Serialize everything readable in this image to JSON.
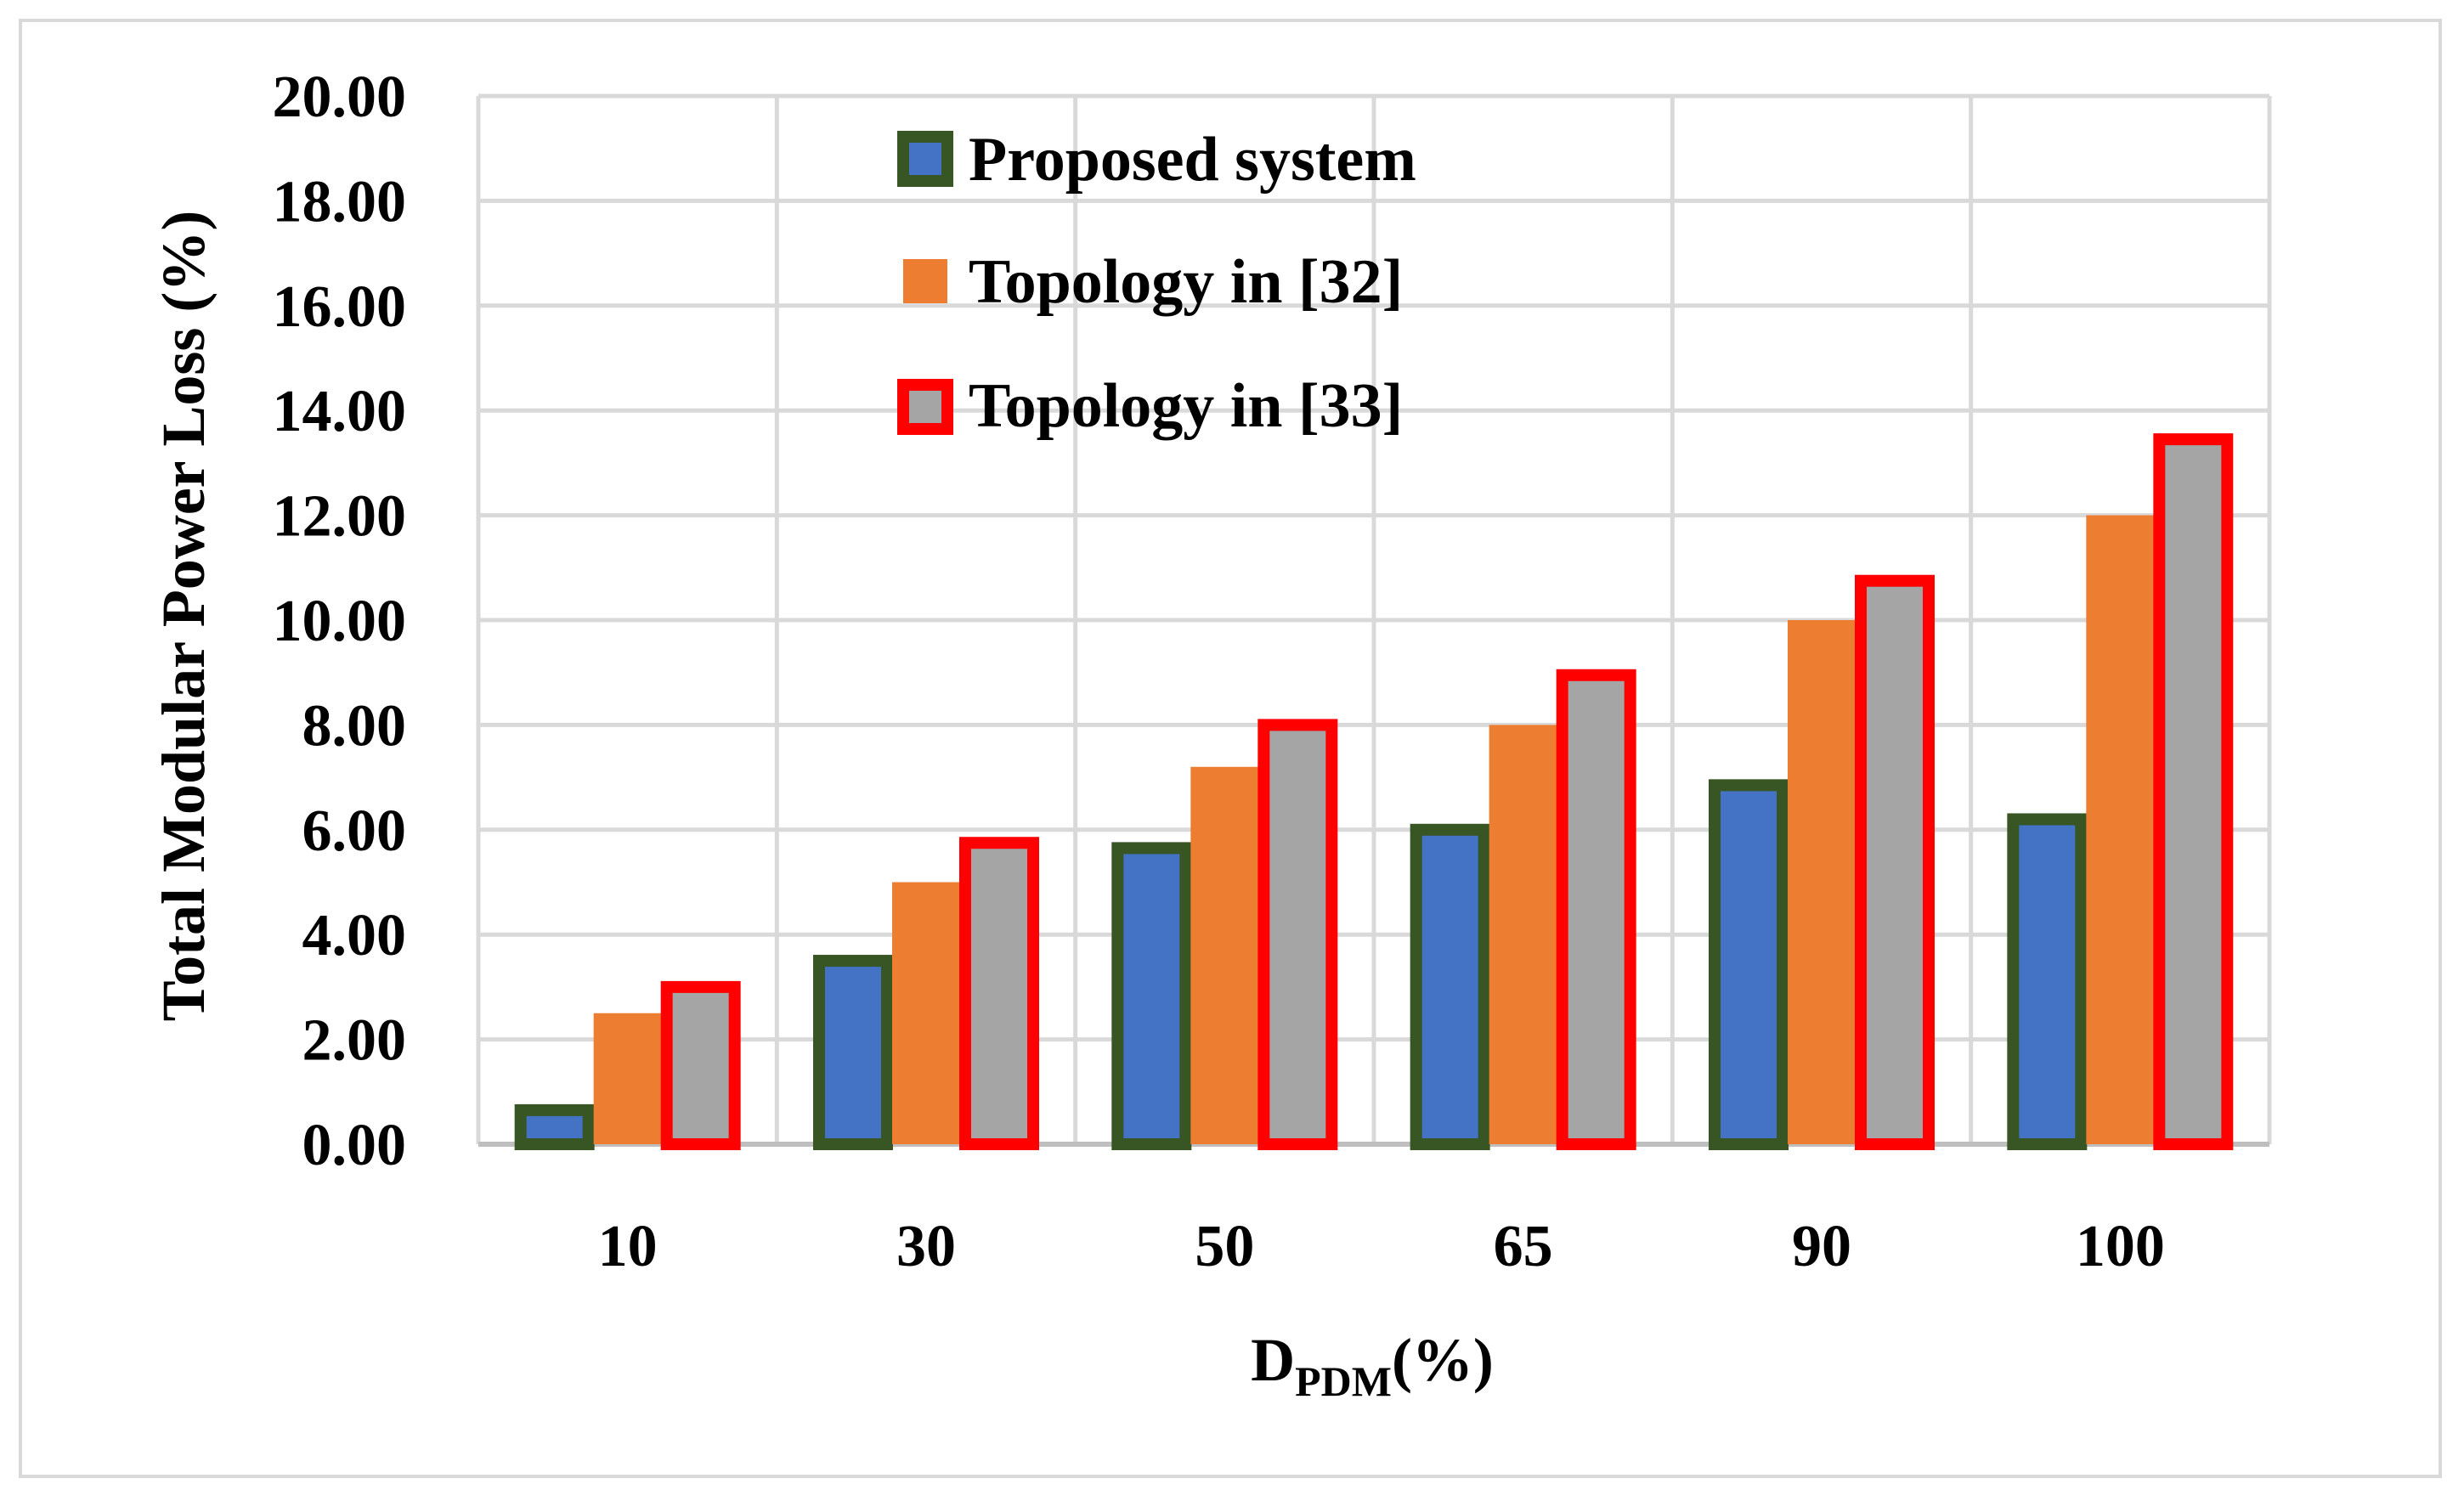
{
  "chart_data": {
    "type": "bar",
    "title": "",
    "xlabel": "D",
    "xlabel_sub": "PDM",
    "xlabel_suffix": "(%)",
    "ylabel": "Total Modular Power Loss (%)",
    "ylim": [
      0,
      20
    ],
    "ytick_step": 2,
    "ytick_labels": [
      "0.00",
      "2.00",
      "4.00",
      "6.00",
      "8.00",
      "10.00",
      "12.00",
      "14.00",
      "16.00",
      "18.00",
      "20.00"
    ],
    "grid": true,
    "legend_position": "top-center",
    "categories": [
      "10",
      "30",
      "50",
      "65",
      "90",
      "100"
    ],
    "series": [
      {
        "name": "Proposed system",
        "values": [
          0.65,
          3.5,
          5.65,
          6.0,
          6.85,
          6.2
        ],
        "fill": "#4472c4",
        "stroke": "#375623"
      },
      {
        "name": "Topology in [32]",
        "values": [
          2.5,
          5.0,
          7.2,
          8.0,
          10.0,
          12.0
        ],
        "fill": "#ed7d31",
        "stroke": "none"
      },
      {
        "name": "Topology in [33]",
        "values": [
          3.0,
          5.75,
          8.0,
          8.95,
          10.75,
          13.45
        ],
        "fill": "#a5a5a5",
        "stroke": "#ff0000"
      }
    ]
  }
}
